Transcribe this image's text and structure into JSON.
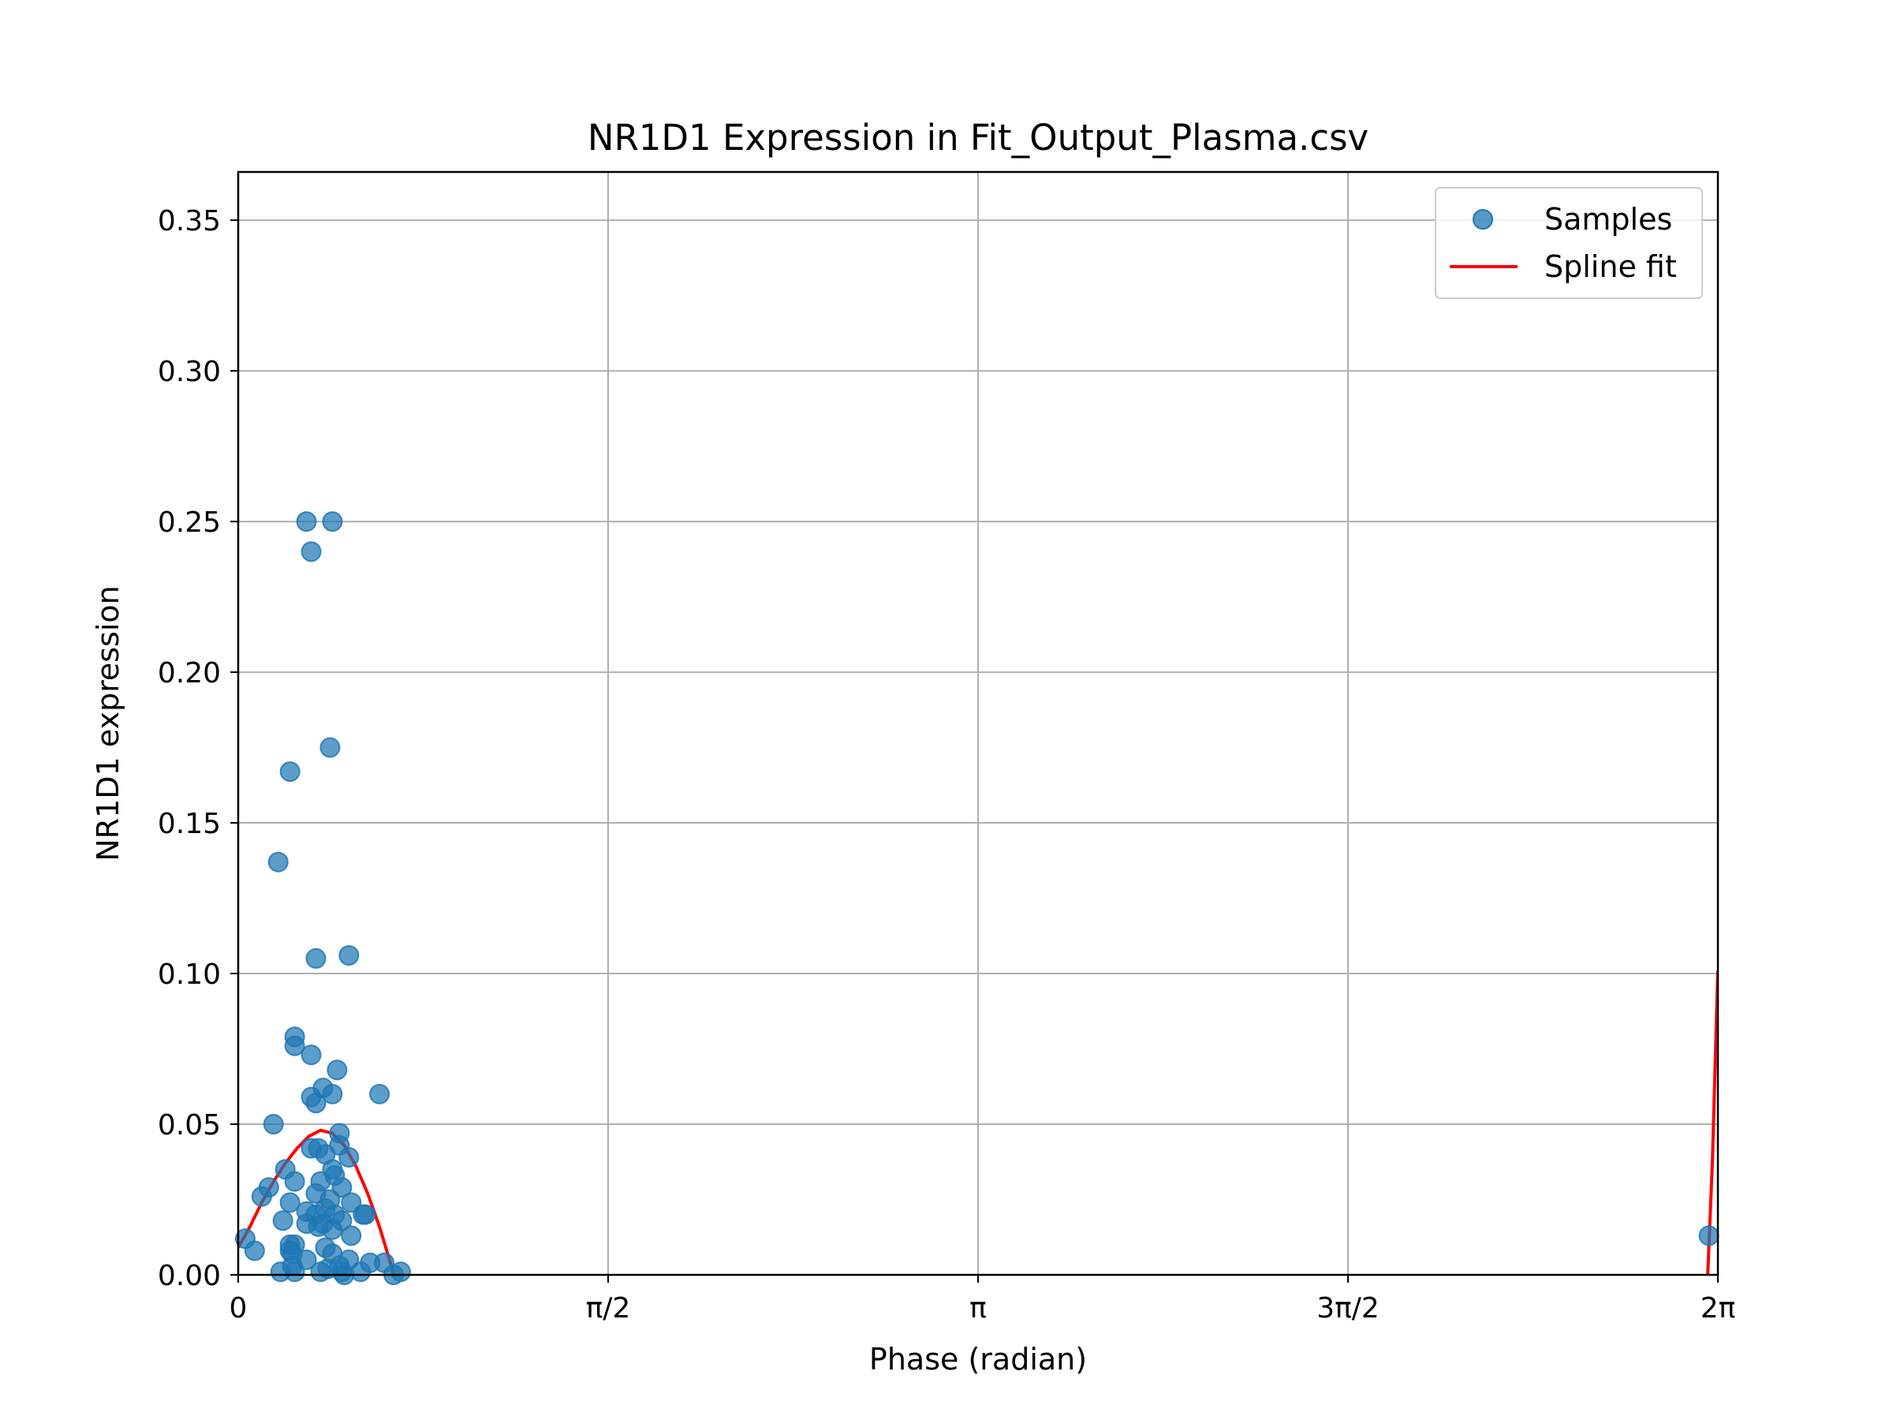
{
  "chart_data": {
    "type": "scatter",
    "title": "NR1D1 Expression in Fit_Output_Plasma.csv",
    "xlabel": "Phase (radian)",
    "ylabel": "NR1D1 expression",
    "xlim": [
      0,
      6.283185
    ],
    "ylim": [
      0,
      0.366
    ],
    "grid": true,
    "legend_position": "top-right",
    "x_ticks": [
      {
        "value": 0,
        "label": "0"
      },
      {
        "value": 1.570796,
        "label": "π/2"
      },
      {
        "value": 3.141593,
        "label": "π"
      },
      {
        "value": 4.712389,
        "label": "3π/2"
      },
      {
        "value": 6.283185,
        "label": "2π"
      }
    ],
    "y_ticks": [
      {
        "value": 0.0,
        "label": "0.00"
      },
      {
        "value": 0.05,
        "label": "0.05"
      },
      {
        "value": 0.1,
        "label": "0.10"
      },
      {
        "value": 0.15,
        "label": "0.15"
      },
      {
        "value": 0.2,
        "label": "0.20"
      },
      {
        "value": 0.25,
        "label": "0.25"
      },
      {
        "value": 0.3,
        "label": "0.30"
      },
      {
        "value": 0.35,
        "label": "0.35"
      }
    ],
    "series": [
      {
        "name": "Samples",
        "kind": "scatter",
        "color": "#1f77b4",
        "points": [
          [
            0.29,
            0.25
          ],
          [
            0.4,
            0.25
          ],
          [
            0.31,
            0.24
          ],
          [
            0.39,
            0.175
          ],
          [
            0.22,
            0.167
          ],
          [
            0.17,
            0.137
          ],
          [
            0.33,
            0.105
          ],
          [
            0.47,
            0.106
          ],
          [
            0.24,
            0.079
          ],
          [
            0.24,
            0.076
          ],
          [
            0.31,
            0.073
          ],
          [
            0.42,
            0.068
          ],
          [
            0.36,
            0.062
          ],
          [
            0.31,
            0.059
          ],
          [
            0.4,
            0.06
          ],
          [
            0.33,
            0.057
          ],
          [
            0.6,
            0.06
          ],
          [
            0.15,
            0.05
          ],
          [
            0.43,
            0.047
          ],
          [
            0.31,
            0.042
          ],
          [
            0.34,
            0.042
          ],
          [
            0.43,
            0.043
          ],
          [
            0.37,
            0.04
          ],
          [
            0.47,
            0.039
          ],
          [
            0.4,
            0.035
          ],
          [
            0.2,
            0.035
          ],
          [
            0.41,
            0.033
          ],
          [
            0.24,
            0.031
          ],
          [
            0.35,
            0.031
          ],
          [
            0.44,
            0.029
          ],
          [
            0.13,
            0.029
          ],
          [
            0.33,
            0.027
          ],
          [
            0.1,
            0.026
          ],
          [
            0.39,
            0.025
          ],
          [
            0.48,
            0.024
          ],
          [
            0.22,
            0.024
          ],
          [
            0.37,
            0.022
          ],
          [
            0.29,
            0.021
          ],
          [
            0.33,
            0.02
          ],
          [
            0.41,
            0.02
          ],
          [
            0.53,
            0.02
          ],
          [
            0.54,
            0.02
          ],
          [
            0.19,
            0.018
          ],
          [
            0.29,
            0.017
          ],
          [
            0.36,
            0.017
          ],
          [
            0.44,
            0.018
          ],
          [
            0.34,
            0.016
          ],
          [
            0.4,
            0.015
          ],
          [
            0.03,
            0.012
          ],
          [
            0.48,
            0.013
          ],
          [
            0.22,
            0.01
          ],
          [
            0.24,
            0.01
          ],
          [
            0.37,
            0.009
          ],
          [
            0.22,
            0.008
          ],
          [
            0.07,
            0.008
          ],
          [
            0.23,
            0.007
          ],
          [
            0.4,
            0.007
          ],
          [
            0.29,
            0.005
          ],
          [
            0.47,
            0.005
          ],
          [
            0.62,
            0.004
          ],
          [
            0.56,
            0.004
          ],
          [
            0.23,
            0.003
          ],
          [
            0.43,
            0.003
          ],
          [
            0.38,
            0.002
          ],
          [
            0.18,
            0.001
          ],
          [
            0.24,
            0.001
          ],
          [
            0.35,
            0.001
          ],
          [
            0.44,
            0.001
          ],
          [
            0.45,
            0.0
          ],
          [
            0.52,
            0.001
          ],
          [
            0.69,
            0.001
          ],
          [
            0.66,
            0.0
          ],
          [
            6.245,
            0.013
          ]
        ]
      },
      {
        "name": "Spline fit",
        "kind": "line",
        "color": "#ff0000",
        "points": [
          [
            0.0,
            0.009
          ],
          [
            0.05,
            0.016
          ],
          [
            0.1,
            0.024
          ],
          [
            0.15,
            0.031
          ],
          [
            0.2,
            0.037
          ],
          [
            0.25,
            0.042
          ],
          [
            0.3,
            0.046
          ],
          [
            0.35,
            0.048
          ],
          [
            0.4,
            0.047
          ],
          [
            0.45,
            0.043
          ],
          [
            0.5,
            0.036
          ],
          [
            0.55,
            0.027
          ],
          [
            0.6,
            0.016
          ],
          [
            0.65,
            0.003
          ],
          [
            0.66,
            0.0
          ]
        ],
        "points_2": [
          [
            6.24,
            0.0
          ],
          [
            6.26,
            0.038
          ],
          [
            6.283,
            0.101
          ]
        ]
      }
    ]
  }
}
